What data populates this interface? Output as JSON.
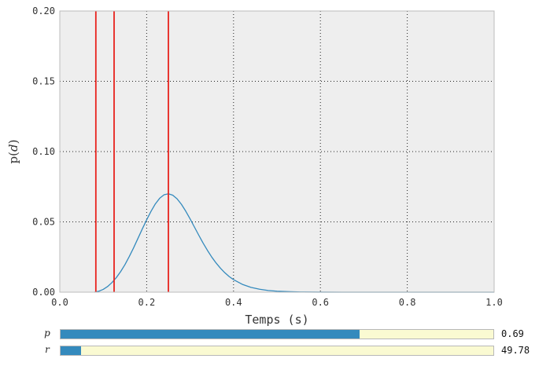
{
  "chart_data": {
    "type": "line",
    "xlabel": "Temps (s)",
    "ylabel_main": "p",
    "ylabel_var": "d",
    "xlim": [
      0.0,
      1.0
    ],
    "ylim": [
      0.0,
      0.2
    ],
    "x_ticks": [
      "0.0",
      "0.2",
      "0.4",
      "0.6",
      "0.8",
      "1.0"
    ],
    "y_ticks": [
      "0.00",
      "0.05",
      "0.10",
      "0.15",
      "0.20"
    ],
    "grid": true,
    "series": [
      {
        "color": "#348abd",
        "x": [
          0.08,
          0.09,
          0.1,
          0.11,
          0.12,
          0.13,
          0.14,
          0.15,
          0.16,
          0.17,
          0.18,
          0.19,
          0.2,
          0.21,
          0.22,
          0.23,
          0.24,
          0.25,
          0.26,
          0.27,
          0.28,
          0.29,
          0.3,
          0.31,
          0.32,
          0.33,
          0.34,
          0.35,
          0.36,
          0.37,
          0.38,
          0.39,
          0.4,
          0.42,
          0.44,
          0.46,
          0.48,
          0.5,
          0.53,
          0.56,
          0.6,
          0.65,
          0.7,
          0.75,
          0.8,
          0.85,
          0.9,
          0.95,
          1.0
        ],
        "y": [
          0.0,
          0.0007,
          0.002,
          0.004,
          0.0068,
          0.0103,
          0.0146,
          0.0196,
          0.0254,
          0.0316,
          0.0383,
          0.045,
          0.0515,
          0.0575,
          0.0628,
          0.0668,
          0.0693,
          0.07,
          0.069,
          0.0664,
          0.0625,
          0.0576,
          0.0521,
          0.0463,
          0.0405,
          0.0349,
          0.0297,
          0.0249,
          0.0207,
          0.017,
          0.0138,
          0.0111,
          0.0089,
          0.0056,
          0.0034,
          0.0021,
          0.0012,
          0.0007,
          0.0003,
          0.0001,
          4e-05,
          1e-05,
          0,
          0,
          0,
          0,
          0,
          0,
          0
        ]
      }
    ],
    "vlines": [
      {
        "x": 0.083,
        "color": "#e8221c"
      },
      {
        "x": 0.125,
        "color": "#e8221c"
      },
      {
        "x": 0.25,
        "color": "#e8221c"
      }
    ]
  },
  "sliders": [
    {
      "label": "p",
      "fraction": 0.69,
      "value": "0.69"
    },
    {
      "label": "r",
      "fraction": 0.048,
      "value": "49.78"
    }
  ],
  "colors": {
    "plot_bg": "#eeeeee",
    "slider_fill": "#348abd",
    "slider_track": "#fafad2"
  }
}
